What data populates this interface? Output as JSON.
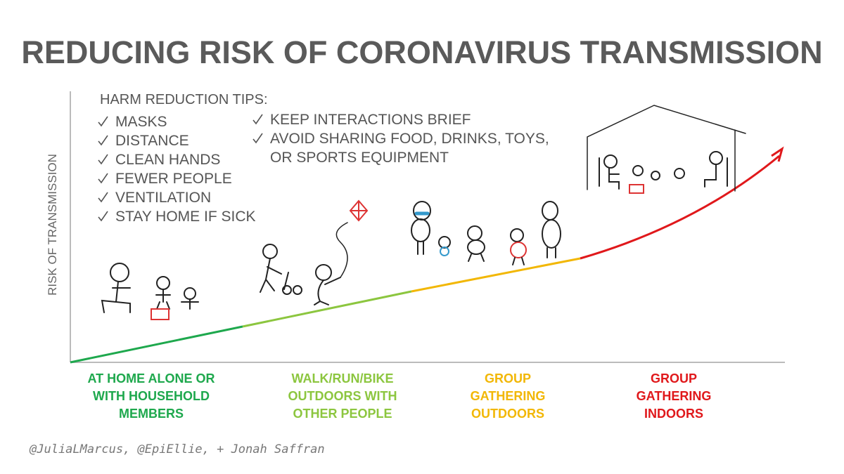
{
  "header": {
    "title": "REDUCING RISK OF CORONAVIRUS TRANSMISSION"
  },
  "axis": {
    "y_label": "RISK OF TRANSMISSION"
  },
  "tips": {
    "heading": "HARM REDUCTION TIPS:",
    "column_1": [
      [
        "MASKS"
      ],
      [
        "DISTANCE"
      ],
      [
        "CLEAN HANDS"
      ],
      [
        "FEWER PEOPLE"
      ],
      [
        "VENTILATION"
      ],
      [
        "STAY HOME IF SICK"
      ]
    ],
    "column_2": [
      [
        "KEEP INTERACTIONS BRIEF"
      ],
      [
        "AVOID SHARING FOOD, DRINKS, TOYS,",
        "OR SPORTS EQUIPMENT"
      ]
    ]
  },
  "categories": [
    {
      "lines": [
        "AT HOME ALONE OR",
        "WITH HOUSEHOLD",
        "MEMBERS"
      ],
      "color": "#1ea84d"
    },
    {
      "lines": [
        "WALK/RUN/BIKE",
        "OUTDOORS WITH",
        "OTHER PEOPLE"
      ],
      "color": "#8cc63f"
    },
    {
      "lines": [
        "GROUP",
        "GATHERING",
        "OUTDOORS"
      ],
      "color": "#f2b705"
    },
    {
      "lines": [
        "GROUP",
        "GATHERING",
        "INDOORS"
      ],
      "color": "#e0181b"
    }
  ],
  "credit": "@JuliaLMarcus, @EpiEllie, + Jonah Saffran"
}
